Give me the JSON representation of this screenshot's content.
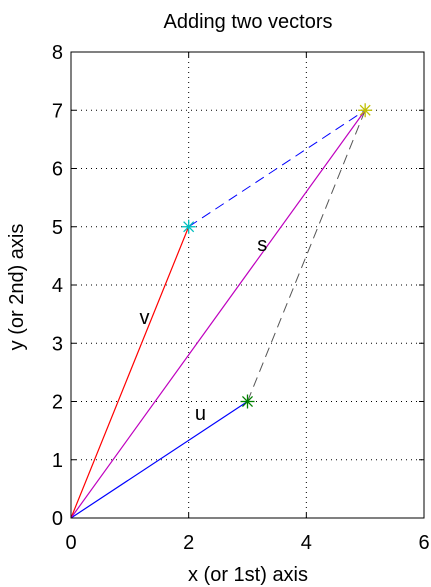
{
  "chart_data": {
    "type": "line",
    "title": "Adding two vectors",
    "xlabel": "x (or 1st) axis",
    "ylabel": "y (or 2nd) axis",
    "xlim": [
      0,
      6
    ],
    "ylim": [
      0,
      8
    ],
    "xticks": [
      "0",
      "2",
      "4",
      "6"
    ],
    "yticks": [
      "0",
      "1",
      "2",
      "3",
      "4",
      "5",
      "6",
      "7",
      "8"
    ],
    "grid": true,
    "vectors": [
      {
        "name": "u",
        "from": [
          0,
          0
        ],
        "to": [
          3,
          2
        ],
        "color": "#0000ff",
        "style": "solid",
        "label_at": [
          2.2,
          1.8
        ]
      },
      {
        "name": "v",
        "from": [
          0,
          0
        ],
        "to": [
          2,
          5
        ],
        "color": "#ff0000",
        "style": "solid",
        "label_at": [
          1.25,
          3.45
        ]
      },
      {
        "name": "s",
        "from": [
          0,
          0
        ],
        "to": [
          5,
          7
        ],
        "color": "#bf00bf",
        "style": "solid",
        "label_at": [
          3.25,
          4.7
        ]
      }
    ],
    "dashed_segments": [
      {
        "from": [
          2,
          5
        ],
        "to": [
          5,
          7
        ],
        "color": "#0000ff"
      },
      {
        "from": [
          3,
          2
        ],
        "to": [
          5,
          7
        ],
        "color": "#555555"
      }
    ],
    "markers": [
      {
        "at": [
          2,
          5
        ],
        "color": "#00bfbf"
      },
      {
        "at": [
          3,
          2
        ],
        "color": "#008000"
      },
      {
        "at": [
          5,
          7
        ],
        "color": "#bfbf00"
      }
    ]
  }
}
